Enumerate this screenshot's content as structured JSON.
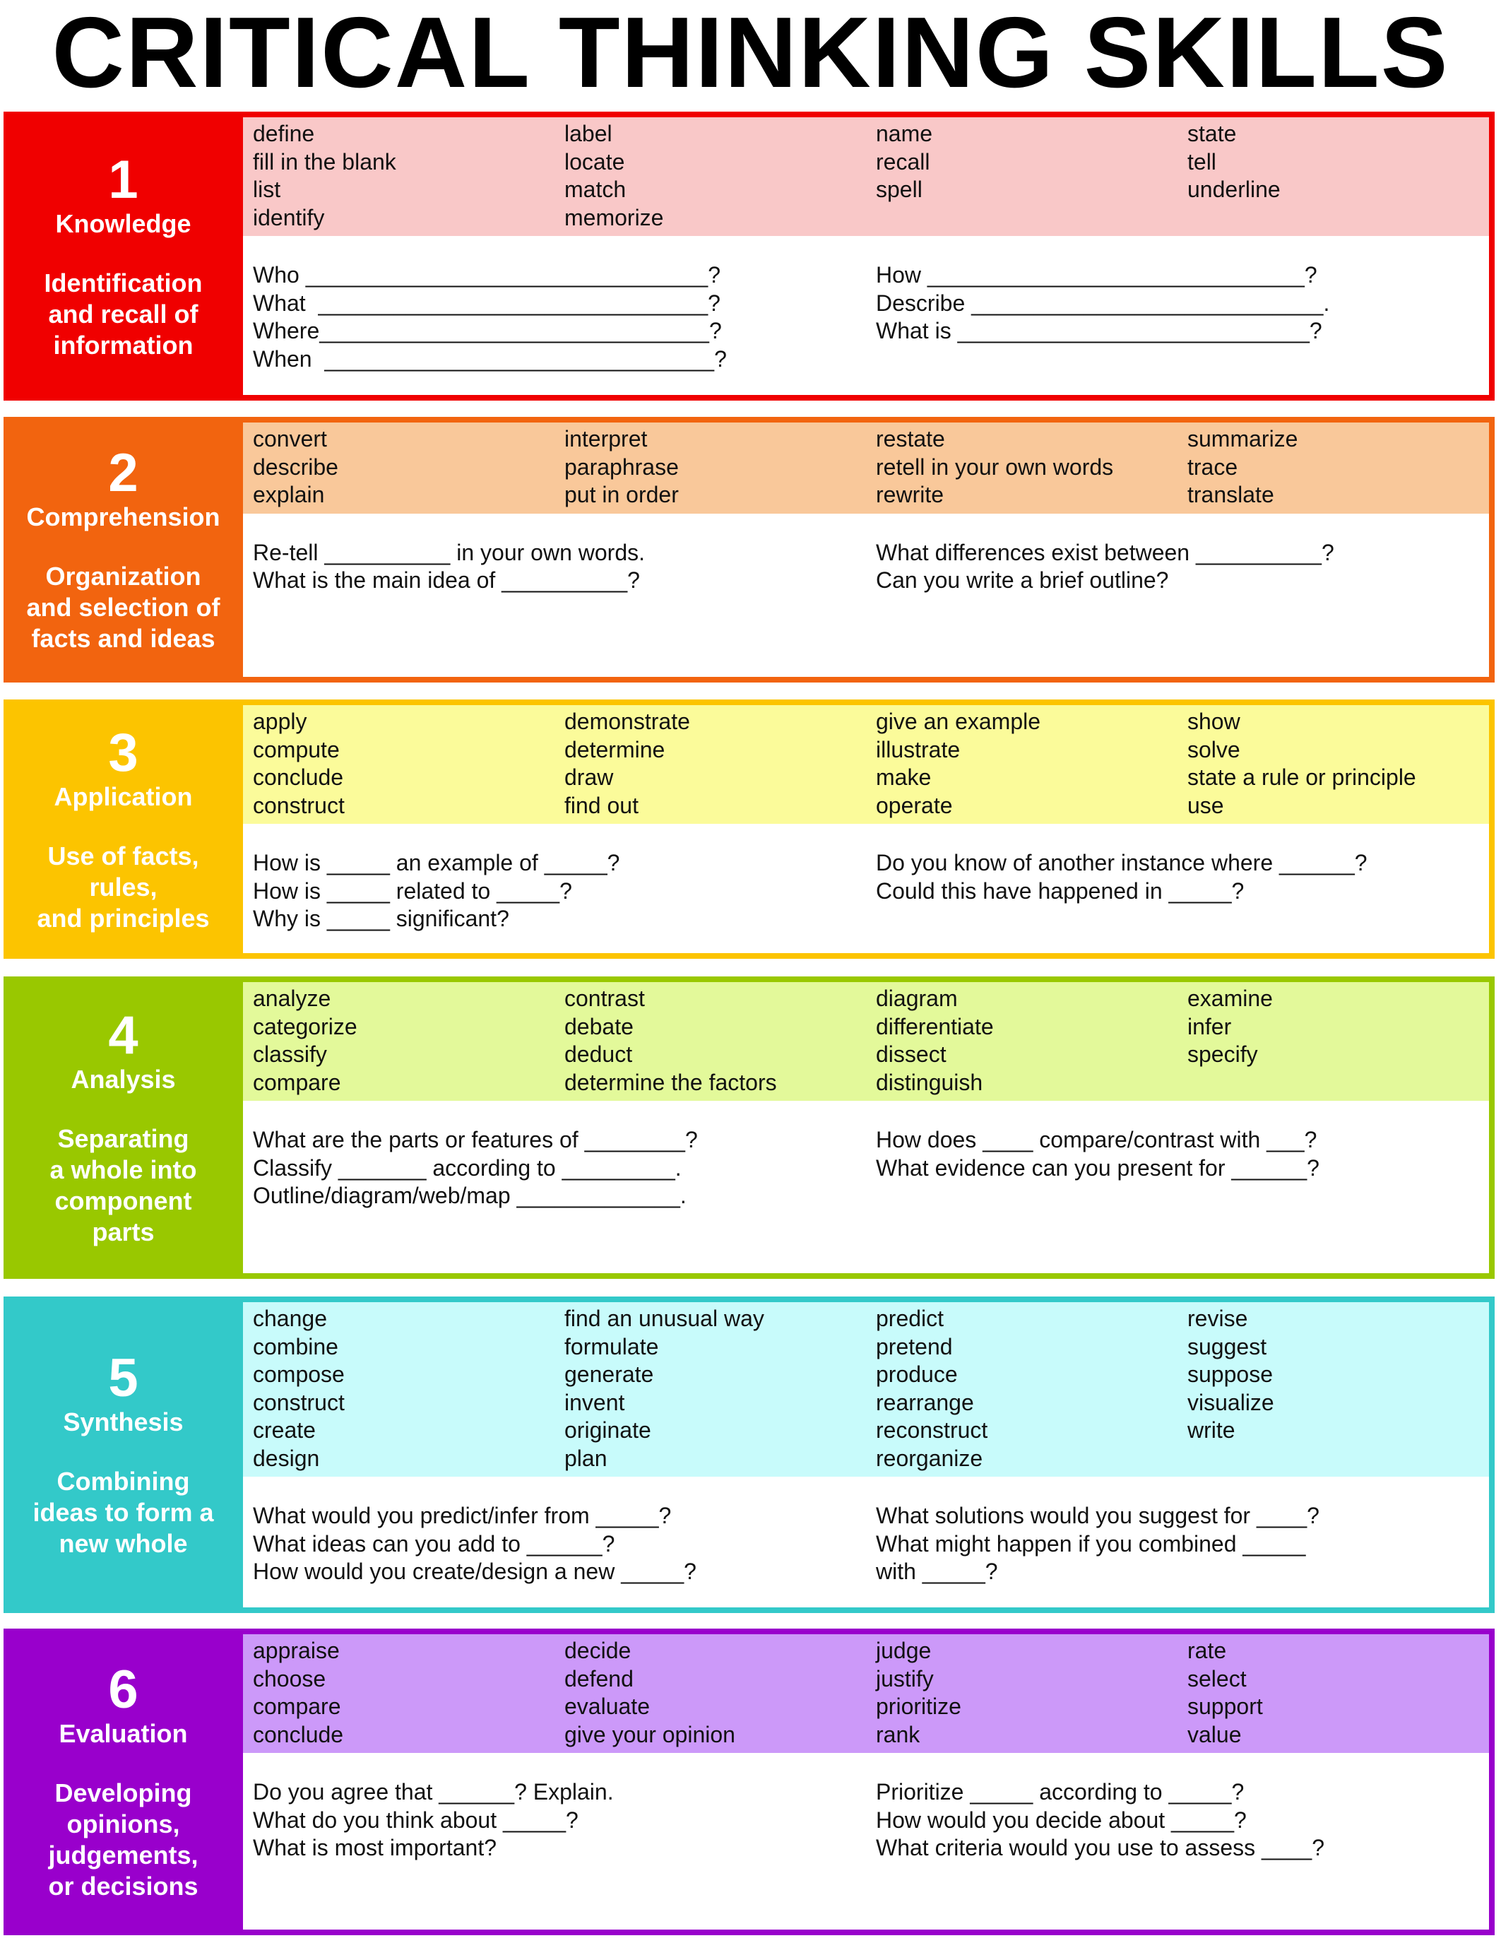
{
  "title": "CRITICAL THINKING SKILLS",
  "sections": [
    {
      "number": "1",
      "name": "Knowledge",
      "description": [
        "Identification",
        "and recall of",
        "information"
      ],
      "color": "#f00000",
      "band_color": "#f9c8c8",
      "words": [
        [
          "define",
          "fill in the blank",
          "list",
          "identify"
        ],
        [
          "label",
          "locate",
          "match",
          "memorize"
        ],
        [
          "name",
          "recall",
          "spell"
        ],
        [
          "state",
          "tell",
          "underline"
        ]
      ],
      "questions": [
        [
          "Who ________________________________?",
          "What  _______________________________?",
          "Where_______________________________?",
          "When  _______________________________?"
        ],
        [
          "How ______________________________?",
          "Describe ____________________________.",
          "What is ____________________________?"
        ]
      ]
    },
    {
      "number": "2",
      "name": "Comprehension",
      "description": [
        "Organization",
        "and selection of",
        "facts and ideas"
      ],
      "color": "#f2640f",
      "band_color": "#f9c89a",
      "words": [
        [
          "convert",
          "describe",
          "explain"
        ],
        [
          "interpret",
          "paraphrase",
          "put in order"
        ],
        [
          "restate",
          "retell in your own words",
          "rewrite"
        ],
        [
          "summarize",
          "trace",
          "translate"
        ]
      ],
      "questions": [
        [
          "Re-tell __________ in your own words.",
          "What is the main idea of __________?"
        ],
        [
          "What differences exist between __________?",
          "Can you write a brief outline?"
        ]
      ]
    },
    {
      "number": "3",
      "name": "Application",
      "description": [
        "Use of facts,",
        "rules,",
        "and principles"
      ],
      "color": "#fcc400",
      "band_color": "#fbfb9a",
      "words": [
        [
          "apply",
          "compute",
          "conclude",
          "construct"
        ],
        [
          "demonstrate",
          "determine",
          "draw",
          "find out"
        ],
        [
          "give an example",
          "illustrate",
          "make",
          "operate"
        ],
        [
          "show",
          "solve",
          "state a rule or principle",
          "use"
        ]
      ],
      "questions": [
        [
          "How is _____ an example of _____?",
          "How is _____ related to _____?",
          "Why is _____ significant?"
        ],
        [
          "Do you know of another instance where ______?",
          "Could this have happened in _____?"
        ]
      ]
    },
    {
      "number": "4",
      "name": "Analysis",
      "description": [
        "Separating",
        "a whole into",
        "component",
        "parts"
      ],
      "color": "#99c800",
      "band_color": "#e3f99a",
      "words": [
        [
          "analyze",
          "categorize",
          "classify",
          "compare"
        ],
        [
          "contrast",
          "debate",
          "deduct",
          "determine the factors"
        ],
        [
          "diagram",
          "differentiate",
          "dissect",
          "distinguish"
        ],
        [
          "examine",
          "infer",
          "specify"
        ]
      ],
      "questions": [
        [
          "What are the parts or features of ________?",
          "Classify _______ according to _________.",
          "Outline/diagram/web/map _____________."
        ],
        [
          "How does ____ compare/contrast with ___?",
          "What evidence can you present for ______?"
        ]
      ]
    },
    {
      "number": "5",
      "name": "Synthesis",
      "description": [
        "Combining",
        "ideas to form a",
        "new whole"
      ],
      "color": "#33c9c9",
      "band_color": "#c8fbfb",
      "words": [
        [
          "change",
          "combine",
          "compose",
          "construct",
          "create",
          "design"
        ],
        [
          "find an unusual way",
          "formulate",
          "generate",
          "invent",
          "originate",
          "plan"
        ],
        [
          "predict",
          "pretend",
          "produce",
          "rearrange",
          "reconstruct",
          "reorganize"
        ],
        [
          "revise",
          "suggest",
          "suppose",
          "visualize",
          "write"
        ]
      ],
      "questions": [
        [
          "What would you predict/infer from _____?",
          "What ideas can you add to ______?",
          "How would you create/design a new _____?"
        ],
        [
          "What solutions would you suggest for ____?",
          "What might happen if you combined _____",
          "with _____?"
        ]
      ]
    },
    {
      "number": "6",
      "name": "Evaluation",
      "description": [
        "Developing",
        "opinions,",
        "judgements,",
        "or decisions"
      ],
      "color": "#9900cc",
      "band_color": "#cc99f9",
      "words": [
        [
          "appraise",
          "choose",
          "compare",
          "conclude"
        ],
        [
          "decide",
          "defend",
          "evaluate",
          "give your opinion"
        ],
        [
          "judge",
          "justify",
          "prioritize",
          "rank"
        ],
        [
          "rate",
          "select",
          "support",
          "value"
        ]
      ],
      "questions": [
        [
          "Do you agree that ______? Explain.",
          "What do you think about _____?",
          "What is most important?"
        ],
        [
          "Prioritize _____ according to _____?",
          "How would you decide about _____?",
          "What criteria would you use to assess ____?"
        ]
      ]
    }
  ]
}
